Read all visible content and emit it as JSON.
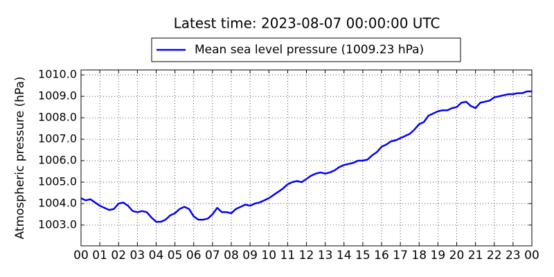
{
  "chart_data": {
    "type": "line",
    "title": "Latest time: 2023-08-07 00:00:00 UTC",
    "ylabel": "Atmospheric pressure (hPa)",
    "grid": true,
    "legend": "upper center",
    "x": [
      0,
      0.25,
      0.5,
      0.75,
      1,
      1.25,
      1.5,
      1.75,
      2,
      2.25,
      2.5,
      2.75,
      3,
      3.25,
      3.5,
      3.75,
      4,
      4.25,
      4.5,
      4.75,
      5,
      5.25,
      5.5,
      5.75,
      6,
      6.25,
      6.5,
      6.75,
      7,
      7.25,
      7.5,
      7.75,
      8,
      8.25,
      8.5,
      8.75,
      9,
      9.25,
      9.5,
      9.75,
      10,
      10.25,
      10.5,
      10.75,
      11,
      11.25,
      11.5,
      11.75,
      12,
      12.25,
      12.5,
      12.75,
      13,
      13.25,
      13.5,
      13.75,
      14,
      14.25,
      14.5,
      14.75,
      15,
      15.25,
      15.5,
      15.75,
      16,
      16.25,
      16.5,
      16.75,
      17,
      17.25,
      17.5,
      17.75,
      18,
      18.25,
      18.5,
      18.75,
      19,
      19.25,
      19.5,
      19.75,
      20,
      20.25,
      20.5,
      20.75,
      21,
      21.25,
      21.5,
      21.75,
      22,
      22.25,
      22.5,
      22.75,
      23,
      23.25,
      23.5,
      23.75,
      24
    ],
    "series": [
      {
        "name": "Mean sea level pressure (1009.23 hPa)",
        "color": "#0000ff",
        "values": [
          1004.25,
          1004.15,
          1004.2,
          1004.05,
          1003.9,
          1003.8,
          1003.7,
          1003.75,
          1004.0,
          1004.05,
          1003.9,
          1003.65,
          1003.6,
          1003.65,
          1003.6,
          1003.35,
          1003.15,
          1003.15,
          1003.25,
          1003.45,
          1003.55,
          1003.75,
          1003.85,
          1003.75,
          1003.4,
          1003.25,
          1003.25,
          1003.3,
          1003.5,
          1003.8,
          1003.6,
          1003.6,
          1003.55,
          1003.75,
          1003.85,
          1003.95,
          1003.9,
          1004.0,
          1004.05,
          1004.15,
          1004.25,
          1004.4,
          1004.55,
          1004.7,
          1004.9,
          1005.0,
          1005.05,
          1005.0,
          1005.15,
          1005.3,
          1005.4,
          1005.45,
          1005.4,
          1005.45,
          1005.55,
          1005.7,
          1005.8,
          1005.85,
          1005.9,
          1006.0,
          1006.0,
          1006.05,
          1006.25,
          1006.4,
          1006.65,
          1006.75,
          1006.9,
          1006.95,
          1007.05,
          1007.15,
          1007.25,
          1007.45,
          1007.7,
          1007.8,
          1008.1,
          1008.2,
          1008.3,
          1008.35,
          1008.35,
          1008.45,
          1008.5,
          1008.7,
          1008.75,
          1008.55,
          1008.45,
          1008.7,
          1008.75,
          1008.8,
          1008.95,
          1009.0,
          1009.05,
          1009.1,
          1009.1,
          1009.15,
          1009.15,
          1009.23,
          1009.23
        ]
      }
    ],
    "xlim": [
      0,
      24
    ],
    "xticks": [
      {
        "value": 0,
        "label": "00"
      },
      {
        "value": 1,
        "label": "01"
      },
      {
        "value": 2,
        "label": "02"
      },
      {
        "value": 3,
        "label": "03"
      },
      {
        "value": 4,
        "label": "04"
      },
      {
        "value": 5,
        "label": "05"
      },
      {
        "value": 6,
        "label": "06"
      },
      {
        "value": 7,
        "label": "07"
      },
      {
        "value": 8,
        "label": "08"
      },
      {
        "value": 9,
        "label": "09"
      },
      {
        "value": 10,
        "label": "10"
      },
      {
        "value": 11,
        "label": "11"
      },
      {
        "value": 12,
        "label": "12"
      },
      {
        "value": 13,
        "label": "13"
      },
      {
        "value": 14,
        "label": "14"
      },
      {
        "value": 15,
        "label": "15"
      },
      {
        "value": 16,
        "label": "16"
      },
      {
        "value": 17,
        "label": "17"
      },
      {
        "value": 18,
        "label": "18"
      },
      {
        "value": 19,
        "label": "19"
      },
      {
        "value": 20,
        "label": "20"
      },
      {
        "value": 21,
        "label": "21"
      },
      {
        "value": 22,
        "label": "22"
      },
      {
        "value": 23,
        "label": "23"
      },
      {
        "value": 24,
        "label": "00"
      }
    ],
    "ylim": [
      1002.03,
      1010.23
    ],
    "yticks": [
      {
        "value": 1003,
        "label": "1003.0"
      },
      {
        "value": 1004,
        "label": "1004.0"
      },
      {
        "value": 1005,
        "label": "1005.0"
      },
      {
        "value": 1006,
        "label": "1006.0"
      },
      {
        "value": 1007,
        "label": "1007.0"
      },
      {
        "value": 1008,
        "label": "1008.0"
      },
      {
        "value": 1009,
        "label": "1009.0"
      },
      {
        "value": 1010,
        "label": "1010.0"
      }
    ]
  }
}
